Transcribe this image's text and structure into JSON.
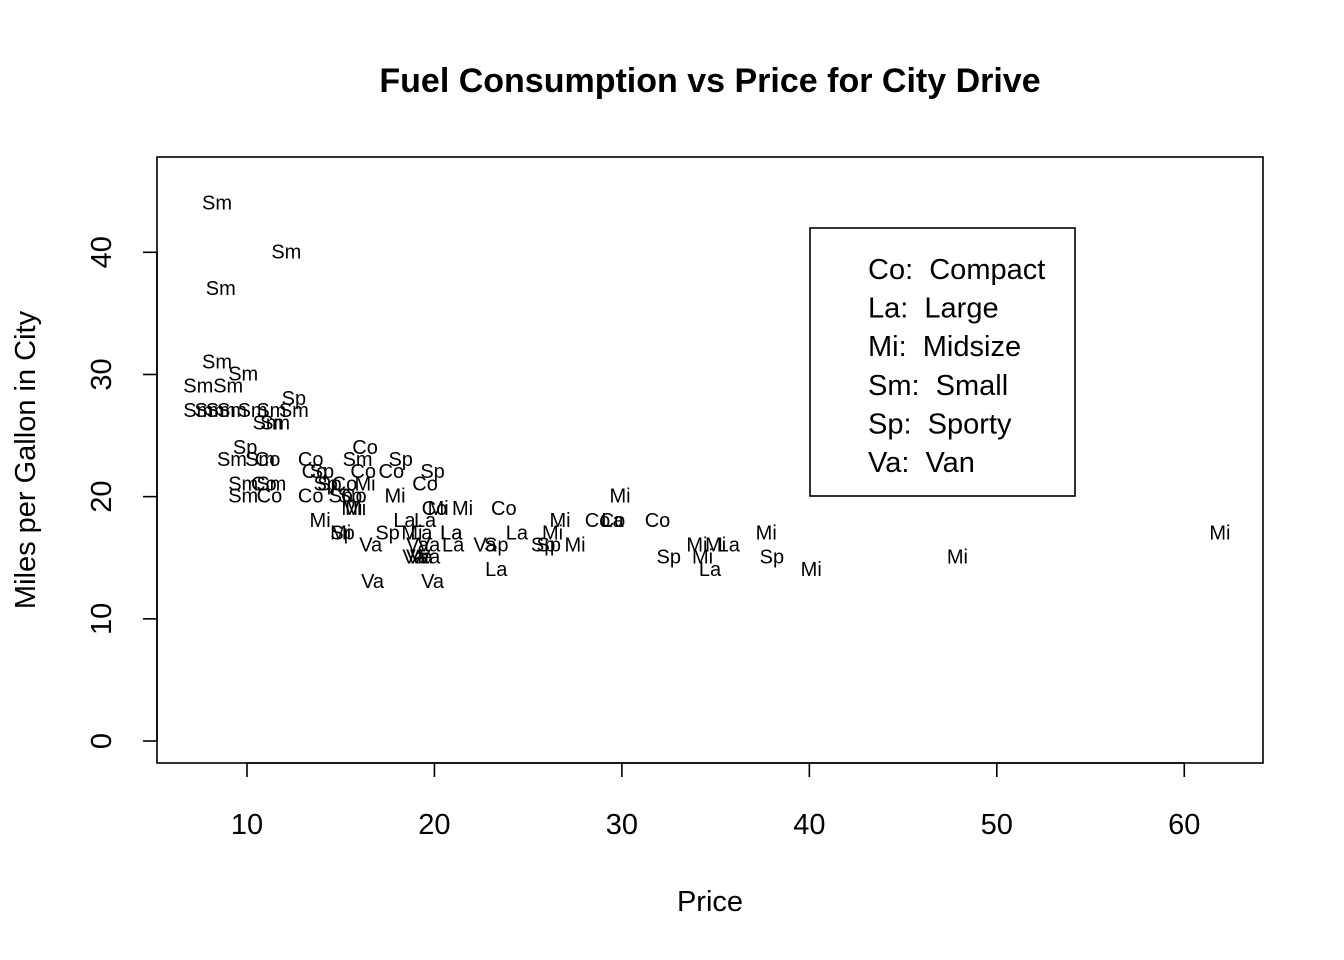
{
  "chart_data": {
    "type": "scatter",
    "title": "Fuel Consumption vs Price for City Drive",
    "xlabel": "Price",
    "ylabel": "Miles per Gallon in City",
    "xlim": [
      5.2,
      64.2
    ],
    "ylim": [
      -1.8,
      47.8
    ],
    "xticks": [
      10,
      20,
      30,
      40,
      50,
      60
    ],
    "yticks": [
      0,
      10,
      20,
      30,
      40
    ],
    "marker": "text-label",
    "legend": {
      "position": "top-right",
      "entries": [
        {
          "code": "Co",
          "name": "Compact"
        },
        {
          "code": "La",
          "name": "Large"
        },
        {
          "code": "Mi",
          "name": "Midsize"
        },
        {
          "code": "Sm",
          "name": "Small"
        },
        {
          "code": "Sp",
          "name": "Sporty"
        },
        {
          "code": "Va",
          "name": "Van"
        }
      ]
    },
    "points": [
      {
        "x": 8.4,
        "y": 44,
        "label": "Sm"
      },
      {
        "x": 12.1,
        "y": 40,
        "label": "Sm"
      },
      {
        "x": 8.6,
        "y": 37,
        "label": "Sm"
      },
      {
        "x": 8.4,
        "y": 31,
        "label": "Sm"
      },
      {
        "x": 9.8,
        "y": 30,
        "label": "Sm"
      },
      {
        "x": 7.4,
        "y": 29,
        "label": "Sm"
      },
      {
        "x": 9.0,
        "y": 29,
        "label": "Sm"
      },
      {
        "x": 12.5,
        "y": 28,
        "label": "Sp"
      },
      {
        "x": 7.4,
        "y": 27,
        "label": "Sm"
      },
      {
        "x": 8.0,
        "y": 27,
        "label": "Sm"
      },
      {
        "x": 8.6,
        "y": 27,
        "label": "Sm"
      },
      {
        "x": 9.2,
        "y": 27,
        "label": "Sm"
      },
      {
        "x": 10.3,
        "y": 27,
        "label": "Sm"
      },
      {
        "x": 11.3,
        "y": 27,
        "label": "Sm"
      },
      {
        "x": 12.5,
        "y": 27,
        "label": "Sm"
      },
      {
        "x": 11.1,
        "y": 26,
        "label": "Sm"
      },
      {
        "x": 11.5,
        "y": 26,
        "label": "Sm"
      },
      {
        "x": 9.9,
        "y": 24,
        "label": "Sp"
      },
      {
        "x": 16.3,
        "y": 24,
        "label": "Co"
      },
      {
        "x": 9.2,
        "y": 23,
        "label": "Sm"
      },
      {
        "x": 10.7,
        "y": 23,
        "label": "Sm"
      },
      {
        "x": 11.1,
        "y": 23,
        "label": "Co"
      },
      {
        "x": 13.4,
        "y": 23,
        "label": "Co"
      },
      {
        "x": 15.9,
        "y": 23,
        "label": "Sm"
      },
      {
        "x": 18.2,
        "y": 23,
        "label": "Sp"
      },
      {
        "x": 13.6,
        "y": 22,
        "label": "Co"
      },
      {
        "x": 14.0,
        "y": 22,
        "label": "Sp"
      },
      {
        "x": 16.2,
        "y": 22,
        "label": "Co"
      },
      {
        "x": 17.7,
        "y": 22,
        "label": "Co"
      },
      {
        "x": 19.9,
        "y": 22,
        "label": "Sp"
      },
      {
        "x": 14.2,
        "y": 21,
        "label": "Sp"
      },
      {
        "x": 15.2,
        "y": 21,
        "label": "Co"
      },
      {
        "x": 16.3,
        "y": 21,
        "label": "Mi"
      },
      {
        "x": 19.5,
        "y": 21,
        "label": "Co"
      },
      {
        "x": 9.8,
        "y": 21,
        "label": "Sm"
      },
      {
        "x": 11.3,
        "y": 21,
        "label": "Sm"
      },
      {
        "x": 10.9,
        "y": 21,
        "label": "Co"
      },
      {
        "x": 14.4,
        "y": 21,
        "label": "Sp"
      },
      {
        "x": 15.0,
        "y": 20,
        "label": "Sp"
      },
      {
        "x": 15.7,
        "y": 20,
        "label": "Co"
      },
      {
        "x": 15.5,
        "y": 20,
        "label": "Sp"
      },
      {
        "x": 9.8,
        "y": 20,
        "label": "Sm"
      },
      {
        "x": 11.2,
        "y": 20,
        "label": "Co"
      },
      {
        "x": 13.4,
        "y": 20,
        "label": "Co"
      },
      {
        "x": 17.9,
        "y": 20,
        "label": "Mi"
      },
      {
        "x": 29.9,
        "y": 20,
        "label": "Mi"
      },
      {
        "x": 15.6,
        "y": 19,
        "label": "Mi"
      },
      {
        "x": 15.8,
        "y": 19,
        "label": "Mi"
      },
      {
        "x": 20.0,
        "y": 19,
        "label": "Co"
      },
      {
        "x": 20.2,
        "y": 19,
        "label": "Mi"
      },
      {
        "x": 21.5,
        "y": 19,
        "label": "Mi"
      },
      {
        "x": 23.7,
        "y": 19,
        "label": "Co"
      },
      {
        "x": 13.9,
        "y": 18,
        "label": "Mi"
      },
      {
        "x": 18.4,
        "y": 18,
        "label": "La"
      },
      {
        "x": 19.5,
        "y": 18,
        "label": "La"
      },
      {
        "x": 26.7,
        "y": 18,
        "label": "Mi"
      },
      {
        "x": 28.7,
        "y": 18,
        "label": "Co"
      },
      {
        "x": 29.5,
        "y": 18,
        "label": "Co"
      },
      {
        "x": 29.5,
        "y": 18,
        "label": "La"
      },
      {
        "x": 31.9,
        "y": 18,
        "label": "Co"
      },
      {
        "x": 15.0,
        "y": 17,
        "label": "Mi"
      },
      {
        "x": 15.1,
        "y": 17,
        "label": "Sp"
      },
      {
        "x": 17.5,
        "y": 17,
        "label": "Sp"
      },
      {
        "x": 18.8,
        "y": 17,
        "label": "Mi"
      },
      {
        "x": 19.3,
        "y": 17,
        "label": "La"
      },
      {
        "x": 20.9,
        "y": 17,
        "label": "La"
      },
      {
        "x": 20.9,
        "y": 17,
        "label": "La"
      },
      {
        "x": 24.4,
        "y": 17,
        "label": "La"
      },
      {
        "x": 26.3,
        "y": 17,
        "label": "Mi"
      },
      {
        "x": 37.7,
        "y": 17,
        "label": "Mi"
      },
      {
        "x": 61.9,
        "y": 17,
        "label": "Mi"
      },
      {
        "x": 16.6,
        "y": 16,
        "label": "Va"
      },
      {
        "x": 19.1,
        "y": 16,
        "label": "Va"
      },
      {
        "x": 19.7,
        "y": 16,
        "label": "Va"
      },
      {
        "x": 21.0,
        "y": 16,
        "label": "La"
      },
      {
        "x": 22.7,
        "y": 16,
        "label": "Va"
      },
      {
        "x": 23.3,
        "y": 16,
        "label": "Sp"
      },
      {
        "x": 25.8,
        "y": 16,
        "label": "Sp"
      },
      {
        "x": 26.1,
        "y": 16,
        "label": "Sp"
      },
      {
        "x": 27.5,
        "y": 16,
        "label": "Mi"
      },
      {
        "x": 34.0,
        "y": 16,
        "label": "Mi"
      },
      {
        "x": 35.0,
        "y": 16,
        "label": "Mi"
      },
      {
        "x": 35.7,
        "y": 16,
        "label": "La"
      },
      {
        "x": 18.9,
        "y": 15,
        "label": "Va"
      },
      {
        "x": 19.1,
        "y": 15,
        "label": "Va"
      },
      {
        "x": 19.3,
        "y": 15,
        "label": "Va"
      },
      {
        "x": 19.7,
        "y": 15,
        "label": "Va"
      },
      {
        "x": 32.5,
        "y": 15,
        "label": "Sp"
      },
      {
        "x": 34.3,
        "y": 15,
        "label": "Mi"
      },
      {
        "x": 38.0,
        "y": 15,
        "label": "Sp"
      },
      {
        "x": 47.9,
        "y": 15,
        "label": "Mi"
      },
      {
        "x": 23.3,
        "y": 14,
        "label": "La"
      },
      {
        "x": 34.7,
        "y": 14,
        "label": "La"
      },
      {
        "x": 40.1,
        "y": 14,
        "label": "Mi"
      },
      {
        "x": 16.7,
        "y": 13,
        "label": "Va"
      },
      {
        "x": 19.9,
        "y": 13,
        "label": "Va"
      }
    ]
  }
}
